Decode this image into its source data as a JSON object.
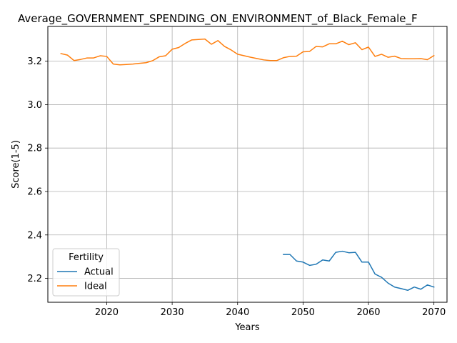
{
  "chart_data": {
    "type": "line",
    "title": "Average_GOVERNMENT_SPENDING_ON_ENVIRONMENT_of_Black_Female_F",
    "xlabel": "Years",
    "ylabel": "Score(1-5)",
    "xlim": [
      2011,
      2072
    ],
    "ylim": [
      2.09,
      3.36
    ],
    "xticks": [
      2020,
      2030,
      2040,
      2050,
      2060,
      2070
    ],
    "yticks": [
      2.2,
      2.4,
      2.6,
      2.8,
      3.0,
      3.2
    ],
    "xtick_labels": [
      "2020",
      "2030",
      "2040",
      "2050",
      "2060",
      "2070"
    ],
    "ytick_labels": [
      "2.2",
      "2.4",
      "2.6",
      "2.8",
      "3.0",
      "3.2"
    ],
    "grid": true,
    "legend": {
      "title": "Fertility",
      "placement": "lower-left"
    },
    "series": [
      {
        "name": "Actual",
        "color": "#1f77b4",
        "x": [
          2047,
          2048,
          2049,
          2050,
          2051,
          2052,
          2053,
          2054,
          2055,
          2056,
          2057,
          2058,
          2059,
          2060,
          2061,
          2062,
          2063,
          2064,
          2065,
          2066,
          2067,
          2068,
          2069,
          2070
        ],
        "y": [
          2.31,
          2.31,
          2.28,
          2.275,
          2.26,
          2.265,
          2.285,
          2.28,
          2.32,
          2.325,
          2.318,
          2.32,
          2.275,
          2.275,
          2.22,
          2.205,
          2.178,
          2.16,
          2.153,
          2.145,
          2.16,
          2.15,
          2.17,
          2.16
        ]
      },
      {
        "name": "Ideal",
        "color": "#ff7f0e",
        "x": [
          2013,
          2014,
          2015,
          2016,
          2017,
          2018,
          2019,
          2020,
          2021,
          2022,
          2023,
          2024,
          2025,
          2026,
          2027,
          2028,
          2029,
          2030,
          2031,
          2032,
          2033,
          2034,
          2035,
          2036,
          2037,
          2038,
          2039,
          2040,
          2041,
          2042,
          2043,
          2044,
          2045,
          2046,
          2047,
          2048,
          2049,
          2050,
          2051,
          2052,
          2053,
          2054,
          2055,
          2056,
          2057,
          2058,
          2059,
          2060,
          2061,
          2062,
          2063,
          2064,
          2065,
          2066,
          2067,
          2068,
          2069,
          2070
        ],
        "y": [
          3.235,
          3.228,
          3.203,
          3.208,
          3.215,
          3.215,
          3.225,
          3.222,
          3.187,
          3.183,
          3.185,
          3.187,
          3.19,
          3.193,
          3.202,
          3.22,
          3.225,
          3.255,
          3.263,
          3.282,
          3.298,
          3.3,
          3.302,
          3.278,
          3.295,
          3.268,
          3.252,
          3.232,
          3.225,
          3.218,
          3.212,
          3.206,
          3.203,
          3.203,
          3.216,
          3.222,
          3.223,
          3.243,
          3.245,
          3.268,
          3.266,
          3.28,
          3.28,
          3.292,
          3.276,
          3.285,
          3.253,
          3.265,
          3.222,
          3.232,
          3.218,
          3.223,
          3.212,
          3.211,
          3.211,
          3.212,
          3.207,
          3.226
        ]
      }
    ]
  }
}
